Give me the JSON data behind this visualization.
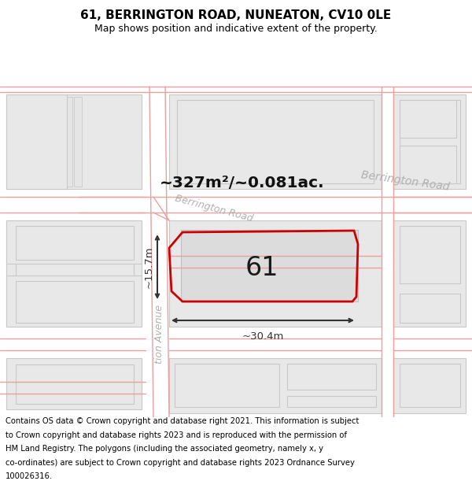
{
  "title": "61, BERRINGTON ROAD, NUNEATON, CV10 0LE",
  "subtitle": "Map shows position and indicative extent of the property.",
  "copyright_text": "Contains OS data © Crown copyright and database right 2021. This information is subject to Crown copyright and database rights 2023 and is reproduced with the permission of HM Land Registry. The polygons (including the associated geometry, namely x, y co-ordinates) are subject to Crown copyright and database rights 2023 Ordnance Survey 100026316.",
  "area_label": "~327m²/~0.081ac.",
  "width_label": "~30.4m",
  "height_label": "~15.7m",
  "plot_number": "61",
  "street_label_upper_right": "Berrington Road",
  "street_label_lower_left": "Berrington Road",
  "avenue_label": "tion Avenue",
  "bg_color": "#ffffff",
  "map_bg": "#ffffff",
  "building_fill": "#e8e8e8",
  "building_edge": "#c8c8c8",
  "road_line_color": "#e8a0a0",
  "plot_outline_color": "#cc0000",
  "dimension_color": "#333333",
  "street_text_color": "#b0b0b0",
  "title_fontsize": 11,
  "subtitle_fontsize": 9,
  "copyright_fontsize": 7.2
}
